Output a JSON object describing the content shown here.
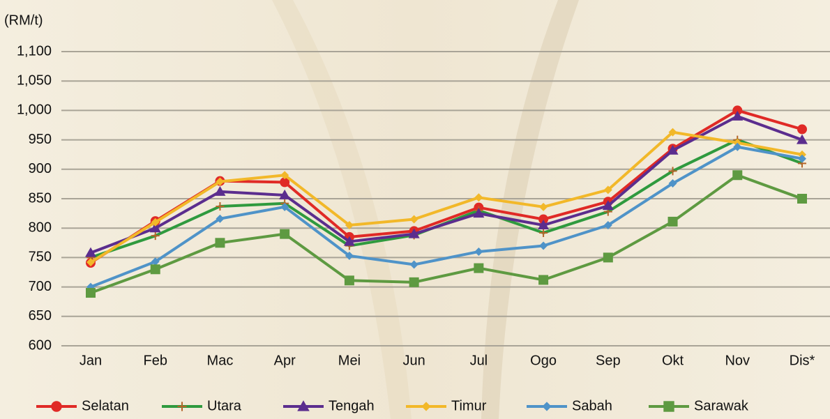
{
  "chart_data": {
    "type": "line",
    "y_label": "(RM/t)",
    "categories": [
      "Jan",
      "Feb",
      "Mac",
      "Apr",
      "Mei",
      "Jun",
      "Jul",
      "Ogo",
      "Sep",
      "Okt",
      "Nov",
      "Dis*"
    ],
    "ylim": [
      600,
      1100
    ],
    "yticks": [
      600,
      650,
      700,
      750,
      800,
      850,
      900,
      950,
      {
        "value": 1000,
        "label": "1,000"
      },
      {
        "value": 1050,
        "label": "1,050"
      },
      {
        "value": 1100,
        "label": "1,100"
      }
    ],
    "grid": true,
    "legend": "bottom",
    "series": [
      {
        "name": "Selatan",
        "color": "#e02a26",
        "marker": "circle",
        "values": [
          741,
          812,
          880,
          878,
          785,
          795,
          835,
          815,
          845,
          935,
          1000,
          968
        ]
      },
      {
        "name": "Utara",
        "color": "#2f9a3e",
        "marker": "plus",
        "values": [
          750,
          787,
          837,
          842,
          770,
          788,
          830,
          792,
          828,
          897,
          950,
          910
        ]
      },
      {
        "name": "Tengah",
        "color": "#5b2d8e",
        "marker": "triangle",
        "values": [
          758,
          800,
          862,
          856,
          777,
          790,
          825,
          805,
          838,
          932,
          990,
          950
        ]
      },
      {
        "name": "Timur",
        "color": "#f2b829",
        "marker": "diamond",
        "values": [
          742,
          810,
          879,
          890,
          805,
          815,
          852,
          836,
          865,
          963,
          945,
          925
        ]
      },
      {
        "name": "Sabah",
        "color": "#4f93c8",
        "marker": "diamond",
        "values": [
          700,
          743,
          816,
          836,
          753,
          738,
          760,
          770,
          805,
          876,
          938,
          918
        ]
      },
      {
        "name": "Sarawak",
        "color": "#5e9a41",
        "marker": "square",
        "values": [
          690,
          730,
          775,
          790,
          711,
          708,
          732,
          712,
          750,
          811,
          890,
          850
        ]
      }
    ]
  }
}
